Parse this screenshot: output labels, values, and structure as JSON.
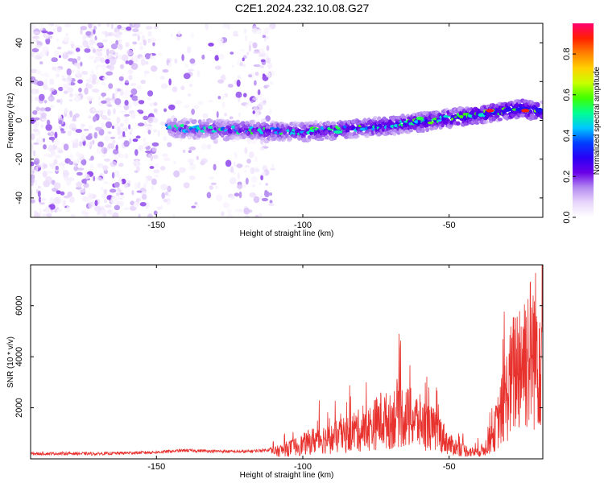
{
  "title": "C2E1.2024.232.10.08.G27",
  "chart_data": [
    {
      "type": "heatmap",
      "xlabel": "Height of straight line (km)",
      "ylabel": "Frequency (Hz)",
      "xlim": [
        -193,
        -18
      ],
      "ylim": [
        -50,
        50
      ],
      "x_ticks": [
        -150,
        -100,
        -50
      ],
      "y_ticks": [
        -40,
        -20,
        0,
        20,
        40
      ],
      "colorbar": {
        "label": "Normalized spectral amplitude",
        "range": [
          0,
          0.95
        ],
        "ticks": [
          0.0,
          0.2,
          0.4,
          0.6,
          0.8
        ],
        "colors": [
          "#ffffff",
          "#e8d6fb",
          "#b48af0",
          "#6a00e8",
          "#2a00f5",
          "#0040ff",
          "#00c8ff",
          "#00ff90",
          "#40ff00",
          "#c8ff00",
          "#ffd000",
          "#ff8000",
          "#ff2000",
          "#ff0070"
        ]
      },
      "ridge": {
        "x": [
          -145,
          -120,
          -100,
          -80,
          -60,
          -40,
          -25,
          -20
        ],
        "frequency": [
          -4,
          -5,
          -6,
          -4,
          -1,
          3,
          6,
          5
        ]
      },
      "peaks": [
        {
          "x": -36,
          "frequency": 5,
          "amplitude": 0.9
        },
        {
          "x": -24,
          "frequency": 5,
          "amplitude": 0.88
        },
        {
          "x": -60,
          "frequency": 1,
          "amplitude": 0.55
        },
        {
          "x": -88,
          "frequency": -6,
          "amplitude": 0.5
        }
      ],
      "noise_region": [
        -193,
        -110
      ]
    },
    {
      "type": "line",
      "xlabel": "Height of straight line (km)",
      "ylabel": "SNR (10 * v/v)",
      "xlim": [
        -193,
        -18
      ],
      "ylim": [
        0,
        7600
      ],
      "x_ticks": [
        -150,
        -100,
        -50
      ],
      "y_ticks": [
        2000,
        4000,
        6000
      ],
      "line_color": "#e8322e",
      "series": [
        {
          "x": [
            -193,
            -180,
            -170,
            -160,
            -150,
            -140,
            -130,
            -120,
            -112,
            -108,
            -104,
            -100,
            -97,
            -94,
            -91,
            -88,
            -85,
            -82,
            -79,
            -76,
            -73,
            -70,
            -68,
            -65,
            -62,
            -59,
            -56,
            -53,
            -50,
            -47,
            -44,
            -41,
            -38,
            -35,
            -32,
            -29,
            -26,
            -23,
            -20,
            -18
          ],
          "y": [
            200,
            210,
            200,
            230,
            260,
            330,
            300,
            280,
            350,
            500,
            700,
            900,
            1100,
            1300,
            1200,
            1400,
            1500,
            1800,
            1700,
            2100,
            2500,
            2300,
            2900,
            2600,
            2500,
            2200,
            1900,
            1600,
            900,
            700,
            500,
            400,
            600,
            1500,
            3000,
            4800,
            6200,
            6600,
            6900,
            7400
          ]
        }
      ]
    }
  ]
}
